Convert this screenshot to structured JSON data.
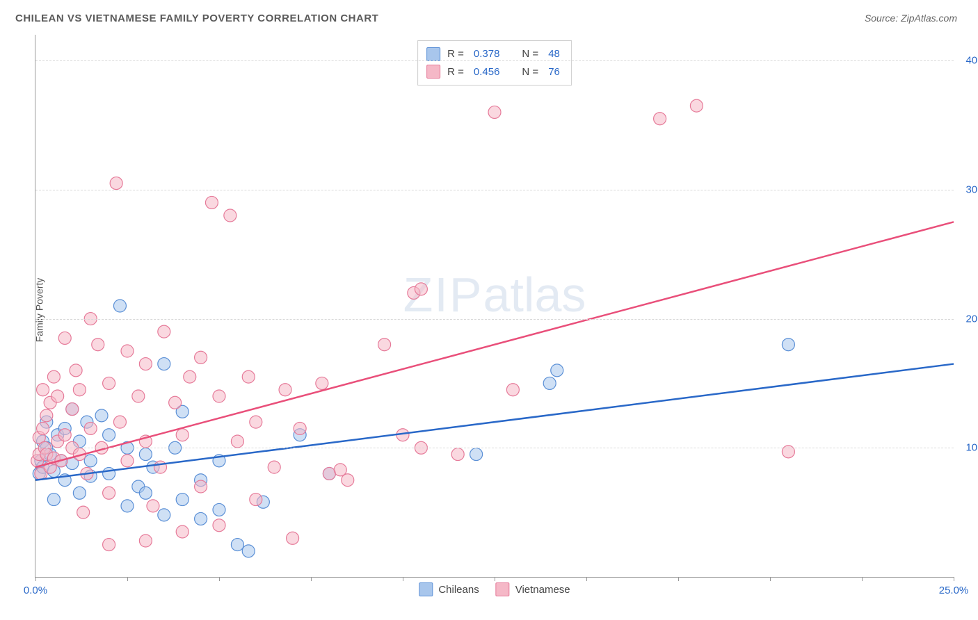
{
  "title": "CHILEAN VS VIETNAMESE FAMILY POVERTY CORRELATION CHART",
  "source": "Source: ZipAtlas.com",
  "watermark_a": "ZIP",
  "watermark_b": "atlas",
  "ylabel": "Family Poverty",
  "chart": {
    "type": "scatter",
    "xlim": [
      0,
      25
    ],
    "ylim": [
      0,
      42
    ],
    "x_ticks": [
      0,
      2.5,
      5,
      7.5,
      10,
      12.5,
      15,
      17.5,
      20,
      22.5,
      25
    ],
    "x_tick_labels": {
      "0": "0.0%",
      "25": "25.0%"
    },
    "y_gridlines": [
      10,
      20,
      30,
      40
    ],
    "y_tick_labels": {
      "10": "10.0%",
      "20": "20.0%",
      "30": "30.0%",
      "40": "40.0%"
    },
    "background_color": "#ffffff",
    "grid_color": "#d8d8d8",
    "axis_color": "#999999",
    "marker_radius": 9,
    "marker_opacity": 0.55,
    "line_width": 2.5,
    "series": [
      {
        "name": "Chileans",
        "color_fill": "#a8c6ec",
        "color_stroke": "#5a8fd6",
        "line_color": "#2968c8",
        "R": "0.378",
        "N": "48",
        "trend": {
          "x1": 0,
          "y1": 7.5,
          "x2": 25,
          "y2": 16.5
        },
        "points": [
          [
            0.1,
            8.0
          ],
          [
            0.15,
            9.0
          ],
          [
            0.2,
            8.5
          ],
          [
            0.2,
            10.5
          ],
          [
            0.3,
            10.0
          ],
          [
            0.3,
            12.0
          ],
          [
            0.4,
            9.5
          ],
          [
            0.5,
            8.2
          ],
          [
            0.5,
            6.0
          ],
          [
            0.6,
            11.0
          ],
          [
            0.7,
            9.0
          ],
          [
            0.8,
            7.5
          ],
          [
            0.8,
            11.5
          ],
          [
            1.0,
            8.8
          ],
          [
            1.0,
            13.0
          ],
          [
            1.2,
            6.5
          ],
          [
            1.2,
            10.5
          ],
          [
            1.4,
            12.0
          ],
          [
            1.5,
            7.8
          ],
          [
            1.5,
            9.0
          ],
          [
            1.8,
            12.5
          ],
          [
            2.0,
            8.0
          ],
          [
            2.0,
            11.0
          ],
          [
            2.3,
            21.0
          ],
          [
            2.5,
            5.5
          ],
          [
            2.5,
            10.0
          ],
          [
            2.8,
            7.0
          ],
          [
            3.0,
            6.5
          ],
          [
            3.0,
            9.5
          ],
          [
            3.2,
            8.5
          ],
          [
            3.5,
            4.8
          ],
          [
            3.5,
            16.5
          ],
          [
            3.8,
            10.0
          ],
          [
            4.0,
            6.0
          ],
          [
            4.0,
            12.8
          ],
          [
            4.5,
            7.5
          ],
          [
            4.5,
            4.5
          ],
          [
            5.0,
            5.2
          ],
          [
            5.0,
            9.0
          ],
          [
            5.5,
            2.5
          ],
          [
            6.2,
            5.8
          ],
          [
            7.2,
            11.0
          ],
          [
            8.0,
            8.0
          ],
          [
            12.0,
            9.5
          ],
          [
            14.0,
            15.0
          ],
          [
            14.2,
            16.0
          ],
          [
            20.5,
            18.0
          ],
          [
            5.8,
            2.0
          ]
        ]
      },
      {
        "name": "Vietnamese",
        "color_fill": "#f5b8c7",
        "color_stroke": "#e67a99",
        "line_color": "#e94f7a",
        "R": "0.456",
        "N": "76",
        "trend": {
          "x1": 0,
          "y1": 8.5,
          "x2": 25,
          "y2": 27.5
        },
        "points": [
          [
            0.05,
            9.0
          ],
          [
            0.1,
            9.5
          ],
          [
            0.1,
            10.8
          ],
          [
            0.15,
            8.0
          ],
          [
            0.2,
            11.5
          ],
          [
            0.2,
            14.5
          ],
          [
            0.25,
            10.0
          ],
          [
            0.3,
            9.5
          ],
          [
            0.3,
            12.5
          ],
          [
            0.4,
            8.5
          ],
          [
            0.4,
            13.5
          ],
          [
            0.5,
            9.2
          ],
          [
            0.5,
            15.5
          ],
          [
            0.6,
            10.5
          ],
          [
            0.6,
            14.0
          ],
          [
            0.7,
            9.0
          ],
          [
            0.8,
            11.0
          ],
          [
            0.8,
            18.5
          ],
          [
            1.0,
            10.0
          ],
          [
            1.0,
            13.0
          ],
          [
            1.1,
            16.0
          ],
          [
            1.2,
            9.5
          ],
          [
            1.2,
            14.5
          ],
          [
            1.4,
            8.0
          ],
          [
            1.5,
            20.0
          ],
          [
            1.5,
            11.5
          ],
          [
            1.7,
            18.0
          ],
          [
            1.8,
            10.0
          ],
          [
            2.0,
            15.0
          ],
          [
            2.0,
            6.5
          ],
          [
            2.2,
            30.5
          ],
          [
            2.3,
            12.0
          ],
          [
            2.5,
            9.0
          ],
          [
            2.5,
            17.5
          ],
          [
            2.8,
            14.0
          ],
          [
            3.0,
            16.5
          ],
          [
            3.0,
            10.5
          ],
          [
            3.2,
            5.5
          ],
          [
            3.4,
            8.5
          ],
          [
            3.5,
            19.0
          ],
          [
            3.8,
            13.5
          ],
          [
            4.0,
            11.0
          ],
          [
            4.0,
            3.5
          ],
          [
            4.2,
            15.5
          ],
          [
            4.5,
            17.0
          ],
          [
            4.5,
            7.0
          ],
          [
            4.8,
            29.0
          ],
          [
            5.0,
            14.0
          ],
          [
            5.0,
            4.0
          ],
          [
            5.3,
            28.0
          ],
          [
            5.5,
            10.5
          ],
          [
            5.8,
            15.5
          ],
          [
            6.0,
            12.0
          ],
          [
            6.0,
            6.0
          ],
          [
            6.5,
            8.5
          ],
          [
            6.8,
            14.5
          ],
          [
            7.0,
            3.0
          ],
          [
            7.2,
            11.5
          ],
          [
            7.8,
            15.0
          ],
          [
            8.0,
            8.0
          ],
          [
            8.3,
            8.3
          ],
          [
            8.5,
            7.5
          ],
          [
            9.5,
            18.0
          ],
          [
            10.0,
            11.0
          ],
          [
            10.3,
            22.0
          ],
          [
            10.5,
            22.3
          ],
          [
            10.5,
            10.0
          ],
          [
            11.5,
            9.5
          ],
          [
            12.5,
            36.0
          ],
          [
            13.0,
            14.5
          ],
          [
            17.0,
            35.5
          ],
          [
            18.0,
            36.5
          ],
          [
            20.5,
            9.7
          ],
          [
            2.0,
            2.5
          ],
          [
            3.0,
            2.8
          ],
          [
            1.3,
            5.0
          ]
        ]
      }
    ]
  },
  "legend_stats": {
    "r_label": "R =",
    "n_label": "N ="
  },
  "legend_bottom": {
    "a": "Chileans",
    "b": "Vietnamese"
  }
}
